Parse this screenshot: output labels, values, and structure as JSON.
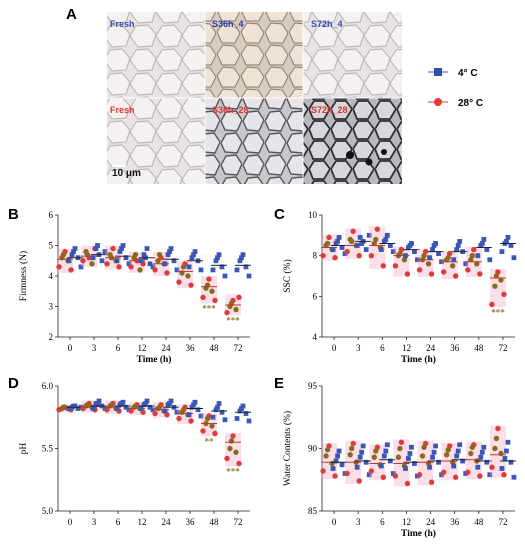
{
  "figure": {
    "panel_a": {
      "letter": "A",
      "tiles": [
        {
          "label": "Fresh",
          "label_color": "#3a4ab5"
        },
        {
          "label": "S36h_4",
          "label_color": "#2a3aa0"
        },
        {
          "label": "S72h_4",
          "label_color": "#3a4ab5"
        },
        {
          "label": "Fresh",
          "label_color": "#e03030"
        },
        {
          "label": "S36h_28",
          "label_color": "#e03030"
        },
        {
          "label": "S72h_28",
          "label_color": "#e03030"
        }
      ],
      "scale_bar": "10 μm",
      "legend": [
        {
          "label": "4° C",
          "color": "#2f4fb0",
          "marker": "square"
        },
        {
          "label": "28° C",
          "color": "#e03a3a",
          "marker": "circle"
        }
      ]
    },
    "colors": {
      "c4": "#3a56b8",
      "c28_red": "#e03a3a",
      "c28_brown": "#8a6a1f",
      "c28_pink": "#f2a3c0",
      "mean_line": "#222222",
      "sig": "#9a7a2a"
    }
  },
  "chart_data": [
    {
      "panel": "B",
      "type": "scatter",
      "title": "",
      "xlabel": "Time (h)",
      "ylabel": "Firmness (N)",
      "categories": [
        "0",
        "3",
        "6",
        "12",
        "24",
        "36",
        "48",
        "72"
      ],
      "ylim": [
        2,
        6
      ],
      "yticks": [
        2,
        3,
        4,
        5,
        6
      ],
      "series": [
        {
          "name": "4° C",
          "values": [
            [
              4.5,
              4.7,
              4.9,
              4.6,
              4.3,
              4.8
            ],
            [
              4.6,
              4.9,
              4.7,
              4.5,
              4.8,
              5.0
            ],
            [
              4.5,
              4.8,
              5.0,
              4.6,
              4.4,
              4.9
            ],
            [
              4.5,
              4.7,
              4.9,
              4.4,
              4.3,
              4.6
            ],
            [
              4.4,
              4.7,
              4.9,
              4.5,
              4.2,
              4.8
            ],
            [
              4.3,
              4.6,
              4.8,
              4.5,
              4.2,
              4.7
            ],
            [
              4.2,
              4.5,
              4.7,
              4.3,
              4.0,
              4.6
            ],
            [
              4.2,
              4.5,
              4.7,
              4.3,
              4.0,
              4.6
            ]
          ],
          "means": [
            4.6,
            4.7,
            4.65,
            4.6,
            4.55,
            4.5,
            4.35,
            4.35
          ]
        },
        {
          "values": [
            [
              4.3,
              4.6,
              4.8,
              4.5,
              4.2,
              4.7
            ],
            [
              4.5,
              4.8,
              4.6,
              4.4,
              4.9,
              4.7
            ],
            [
              4.4,
              4.7,
              4.9,
              4.5,
              4.3,
              4.6
            ],
            [
              4.3,
              4.6,
              4.5,
              4.2,
              4.4,
              4.7
            ],
            [
              4.2,
              4.5,
              4.6,
              4.4,
              4.1,
              4.7
            ],
            [
              3.8,
              4.1,
              4.4,
              4.0,
              3.7,
              4.3
            ],
            [
              3.3,
              3.6,
              3.9,
              3.5,
              3.2,
              3.7
            ],
            [
              2.8,
              3.0,
              3.2,
              2.9,
              3.3,
              3.1
            ]
          ],
          "means": [
            4.55,
            4.65,
            4.6,
            4.5,
            4.4,
            4.15,
            3.65,
            3.05
          ]
        }
      ],
      "significance": [
        {
          "category": "48",
          "text": "***"
        },
        {
          "category": "72",
          "text": "***"
        }
      ]
    },
    {
      "panel": "C",
      "type": "scatter",
      "title": "",
      "xlabel": "Time (h)",
      "ylabel": "SSC (%)",
      "categories": [
        "0",
        "3",
        "6",
        "12",
        "24",
        "36",
        "48",
        "72"
      ],
      "ylim": [
        4,
        10
      ],
      "yticks": [
        4,
        6,
        8,
        10
      ],
      "series": [
        {
          "name": "4° C",
          "values": [
            [
              8.3,
              8.6,
              8.9,
              8.4,
              8.1,
              8.7
            ],
            [
              8.5,
              8.9,
              8.7,
              8.3,
              9.0,
              8.6
            ],
            [
              8.3,
              8.7,
              9.0,
              8.5,
              8.2,
              8.8
            ],
            [
              8.0,
              8.4,
              8.6,
              8.2,
              7.8,
              8.5
            ],
            [
              7.9,
              8.3,
              8.6,
              8.1,
              7.7,
              8.5
            ],
            [
              7.8,
              8.3,
              8.7,
              8.2,
              7.6,
              8.5
            ],
            [
              8.0,
              8.5,
              8.8,
              8.3,
              7.8,
              8.6
            ],
            [
              8.2,
              8.6,
              8.9,
              8.5,
              7.9,
              8.7
            ]
          ],
          "means": [
            8.5,
            8.7,
            8.6,
            8.3,
            8.2,
            8.2,
            8.4,
            8.6
          ]
        },
        {
          "values": [
            [
              8.0,
              8.5,
              8.9,
              8.3,
              7.9,
              8.6
            ],
            [
              8.2,
              8.8,
              9.2,
              8.5,
              8.0,
              8.7
            ],
            [
              8.0,
              8.6,
              9.3,
              8.4,
              7.5,
              8.8
            ],
            [
              7.5,
              8.0,
              8.3,
              7.8,
              7.1,
              8.1
            ],
            [
              7.3,
              7.8,
              8.2,
              7.6,
              7.1,
              8.0
            ],
            [
              7.2,
              7.8,
              8.1,
              7.5,
              7.0,
              7.9
            ],
            [
              7.3,
              7.8,
              8.3,
              7.6,
              7.1,
              8.0
            ],
            [
              5.6,
              6.5,
              7.2,
              6.8,
              6.1,
              7.0
            ]
          ],
          "means": [
            8.4,
            8.5,
            8.5,
            8.0,
            7.8,
            7.7,
            7.7,
            6.9
          ]
        }
      ],
      "significance": [
        {
          "category": "72",
          "text": "***"
        }
      ]
    },
    {
      "panel": "D",
      "type": "scatter",
      "title": "",
      "xlabel": "",
      "ylabel": "pH",
      "categories": [
        "0",
        "3",
        "6",
        "12",
        "24",
        "36",
        "48",
        "72"
      ],
      "ylim": [
        5.0,
        6.0
      ],
      "yticks": [
        5.0,
        5.5,
        6.0
      ],
      "series": [
        {
          "name": "4° C",
          "values": [
            [
              5.82,
              5.83,
              5.84,
              5.82,
              5.83,
              5.84
            ],
            [
              5.82,
              5.86,
              5.88,
              5.84,
              5.82,
              5.85
            ],
            [
              5.82,
              5.85,
              5.87,
              5.83,
              5.81,
              5.86
            ],
            [
              5.82,
              5.85,
              5.88,
              5.83,
              5.81,
              5.86
            ],
            [
              5.8,
              5.85,
              5.88,
              5.83,
              5.79,
              5.86
            ],
            [
              5.77,
              5.83,
              5.87,
              5.81,
              5.76,
              5.85
            ],
            [
              5.75,
              5.81,
              5.86,
              5.79,
              5.73,
              5.83
            ],
            [
              5.74,
              5.8,
              5.84,
              5.78,
              5.72,
              5.82
            ]
          ],
          "means": [
            5.83,
            5.84,
            5.84,
            5.84,
            5.83,
            5.82,
            5.8,
            5.79
          ]
        },
        {
          "values": [
            [
              5.81,
              5.82,
              5.83,
              5.82,
              5.81,
              5.83
            ],
            [
              5.82,
              5.84,
              5.86,
              5.83,
              5.81,
              5.85
            ],
            [
              5.81,
              5.84,
              5.86,
              5.82,
              5.8,
              5.85
            ],
            [
              5.8,
              5.83,
              5.85,
              5.82,
              5.79,
              5.84
            ],
            [
              5.78,
              5.82,
              5.85,
              5.8,
              5.77,
              5.83
            ],
            [
              5.74,
              5.79,
              5.83,
              5.77,
              5.72,
              5.81
            ],
            [
              5.64,
              5.7,
              5.76,
              5.68,
              5.62,
              5.74
            ],
            [
              5.42,
              5.5,
              5.6,
              5.47,
              5.38,
              5.56
            ]
          ],
          "means": [
            5.82,
            5.83,
            5.83,
            5.82,
            5.81,
            5.78,
            5.7,
            5.55
          ]
        }
      ],
      "significance": [
        {
          "category": "48",
          "text": "**"
        },
        {
          "category": "72",
          "text": "***"
        }
      ]
    },
    {
      "panel": "E",
      "type": "scatter",
      "title": "",
      "xlabel": "Time (h)",
      "ylabel": "Water Contents (%)",
      "categories": [
        "0",
        "3",
        "6",
        "12",
        "24",
        "36",
        "48",
        "72"
      ],
      "ylim": [
        85,
        95
      ],
      "yticks": [
        85,
        90,
        95
      ],
      "series": [
        {
          "name": "4° C",
          "values": [
            [
              88.4,
              89.0,
              89.8,
              88.7,
              88.0,
              89.4
            ],
            [
              88.5,
              89.3,
              90.2,
              88.9,
              87.9,
              89.7
            ],
            [
              88.6,
              89.4,
              90.3,
              89.0,
              88.0,
              89.8
            ],
            [
              88.4,
              89.2,
              90.1,
              88.8,
              87.8,
              89.6
            ],
            [
              88.5,
              89.3,
              90.2,
              88.9,
              87.9,
              89.7
            ],
            [
              88.6,
              89.4,
              90.3,
              89.0,
              88.0,
              89.8
            ],
            [
              88.5,
              89.3,
              90.1,
              88.9,
              87.9,
              89.7
            ],
            [
              88.4,
              89.2,
              90.5,
              88.9,
              87.7,
              89.8
            ]
          ],
          "means": [
            88.9,
            89.0,
            89.1,
            88.9,
            89.0,
            89.1,
            89.0,
            89.0
          ]
        },
        {
          "values": [
            [
              88.2,
              89.4,
              90.2,
              88.8,
              87.8,
              89.9
            ],
            [
              88.0,
              89.5,
              90.4,
              88.9,
              87.4,
              90.0
            ],
            [
              88.2,
              89.3,
              90.1,
              88.7,
              87.7,
              89.8
            ],
            [
              87.8,
              89.3,
              90.5,
              88.6,
              87.2,
              90.0
            ],
            [
              87.9,
              89.4,
              90.4,
              88.8,
              87.3,
              90.1
            ],
            [
              88.1,
              89.5,
              90.2,
              88.9,
              87.7,
              89.9
            ],
            [
              88.1,
              89.6,
              90.3,
              89.0,
              87.8,
              90.1
            ],
            [
              88.5,
              90.0,
              91.6,
              89.6,
              87.9,
              90.8
            ]
          ],
          "means": [
            88.9,
            88.9,
            88.8,
            88.8,
            88.9,
            89.0,
            89.1,
            89.5
          ]
        }
      ],
      "significance": []
    }
  ]
}
